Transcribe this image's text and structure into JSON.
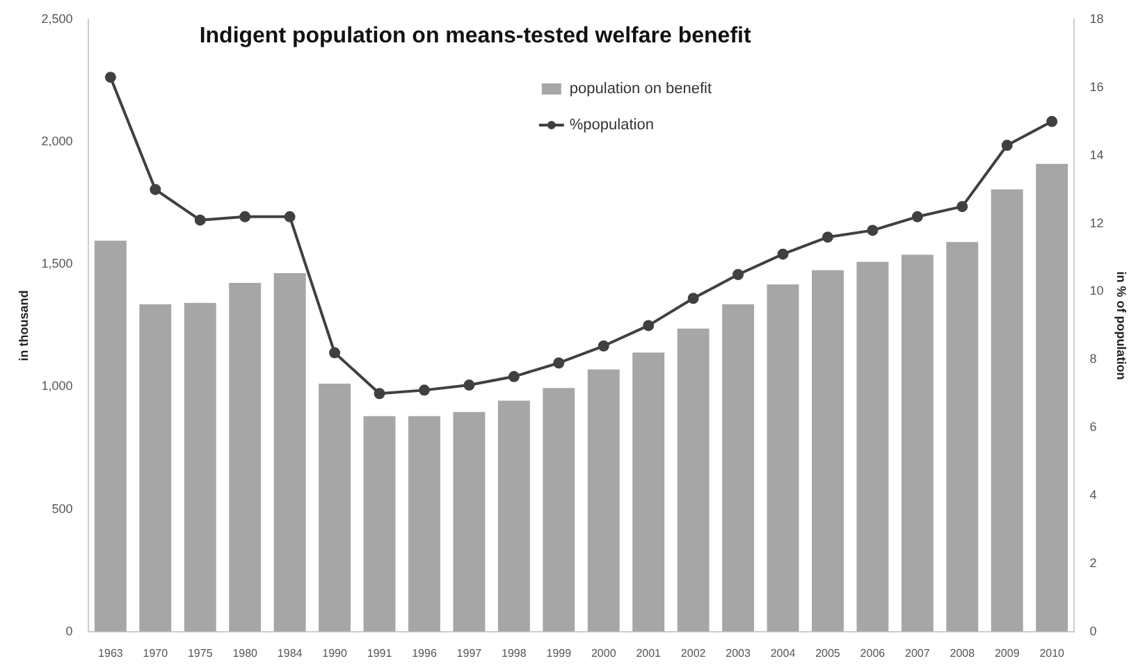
{
  "chart_data": {
    "type": "bar",
    "title": "Indigent population on means-tested welfare benefit",
    "ylabel": "in thousand",
    "y2label": "in % of population",
    "categories": [
      "1963",
      "1970",
      "1975",
      "1980",
      "1984",
      "1990",
      "1991",
      "1996",
      "1997",
      "1998",
      "1999",
      "2000",
      "2001",
      "2002",
      "2003",
      "2004",
      "2005",
      "2006",
      "2007",
      "2008",
      "2009",
      "2010"
    ],
    "series": [
      {
        "name": "population on benefit",
        "color": "#a6a6a6",
        "values": [
          1597,
          1337,
          1343,
          1424,
          1464,
          1013,
          880,
          880,
          897,
          943,
          995,
          1071,
          1140,
          1238,
          1337,
          1418,
          1476,
          1510,
          1539,
          1591,
          1806,
          1910
        ]
      },
      {
        "name": "%population",
        "type": "line",
        "axis": "y2",
        "color": "#404040",
        "values": [
          16.3,
          13.0,
          12.1,
          12.2,
          12.2,
          8.2,
          7.0,
          7.1,
          7.25,
          7.5,
          7.9,
          8.4,
          9.0,
          9.8,
          10.5,
          11.1,
          11.6,
          11.8,
          12.2,
          12.5,
          14.3,
          15.0
        ]
      }
    ],
    "ylim": [
      0,
      2500
    ],
    "yticks": [
      0,
      500,
      {
        "value": 1000,
        "label": "1,000"
      },
      {
        "value": 1500,
        "label": "1,500"
      },
      {
        "value": 2000,
        "label": "2,000"
      },
      {
        "value": 2500,
        "label": "2,500"
      }
    ],
    "y2lim": [
      0,
      18
    ],
    "y2ticks": [
      0,
      2,
      4,
      6,
      8,
      10,
      12,
      14,
      16,
      18
    ],
    "grid": false,
    "legend": "top",
    "marker": "circle",
    "line_style": "solid"
  }
}
